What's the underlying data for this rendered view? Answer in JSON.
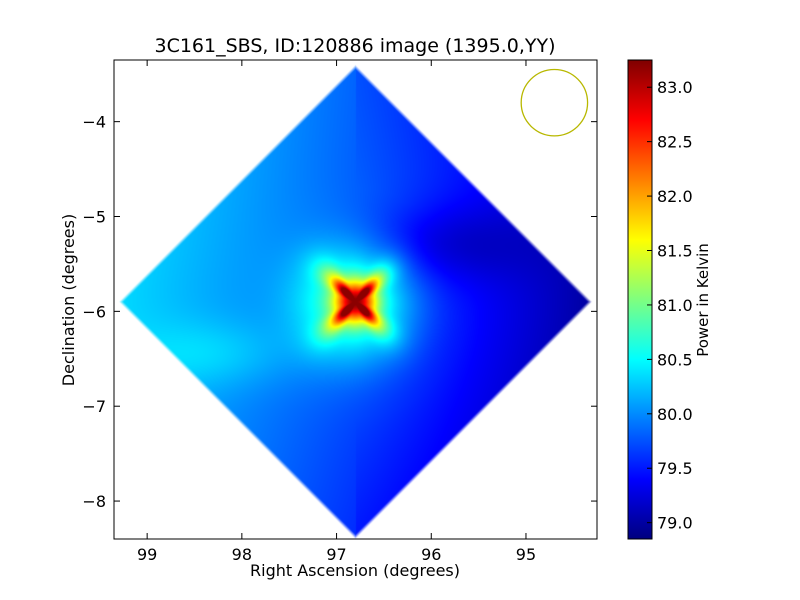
{
  "chart_data": {
    "type": "heatmap",
    "title": "3C161_SBS, ID:120886 image (1395.0,YY)",
    "xlabel": "Right Ascension (degrees)",
    "ylabel": "Declination (degrees)",
    "colorbar_label": "Power in Kelvin",
    "xlim": [
      99.35,
      94.25
    ],
    "ylim": [
      -8.4,
      -3.35
    ],
    "x_inverted": true,
    "xticks": [
      99,
      98,
      97,
      96,
      95
    ],
    "xtick_labels": [
      "99",
      "98",
      "97",
      "96",
      "95"
    ],
    "yticks": [
      -4,
      -5,
      -6,
      -7,
      -8
    ],
    "ytick_labels": [
      "−4",
      "−5",
      "−6",
      "−7",
      "−8"
    ],
    "colorbar_range": [
      78.85,
      83.25
    ],
    "colorbar_ticks": [
      79.0,
      79.5,
      80.0,
      80.5,
      81.0,
      81.5,
      82.0,
      82.5,
      83.0
    ],
    "colorbar_tick_labels": [
      "79.0",
      "79.5",
      "80.0",
      "80.5",
      "81.0",
      "81.5",
      "82.0",
      "82.5",
      "83.0"
    ],
    "colormap": "jet",
    "colormap_stops": [
      "#00007f",
      "#0000ff",
      "#007fff",
      "#00ffff",
      "#7fff7f",
      "#ffff00",
      "#ff7f00",
      "#ff0000",
      "#7f0000"
    ],
    "map_center": {
      "ra": 96.8,
      "dec": -5.9
    },
    "map_half_width_deg": 2.5,
    "background_level_K": 79.75,
    "source_peak_K": 83.2,
    "beam": {
      "ra": 94.7,
      "dec": -3.8,
      "radius_deg": 0.35,
      "color": "#b8b800"
    },
    "grid": false
  }
}
